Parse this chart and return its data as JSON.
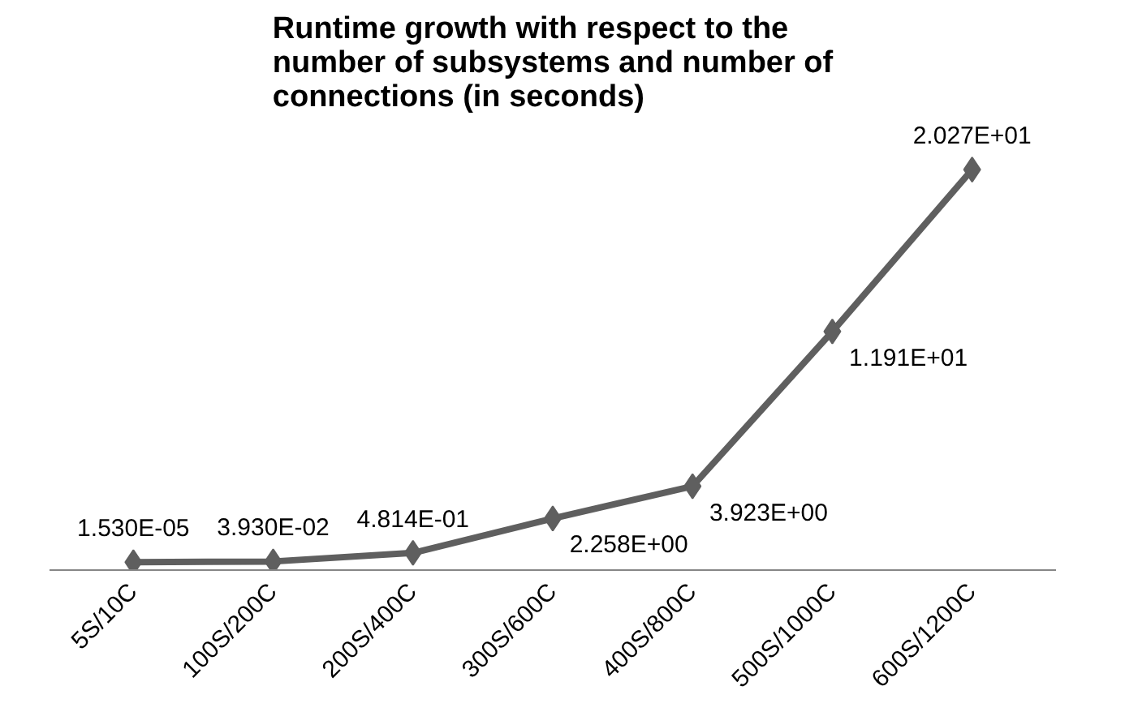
{
  "chart_data": {
    "type": "line",
    "title": "Runtime growth with respect to the number of subsystems and number of connections (in seconds)",
    "categories": [
      "5S/10C",
      "100S/200C",
      "200S/400C",
      "300S/600C",
      "400S/800C",
      "500S/1000C",
      "600S/1200C"
    ],
    "series": [
      {
        "color": "#5f5f5f",
        "values": [
          1.53e-05,
          0.0393,
          0.4814,
          2.258,
          3.923,
          11.91,
          20.27
        ],
        "value_labels": [
          "1.530E-05",
          "3.930E-02",
          "4.814E-01",
          "2.258E+00",
          "3.923E+00",
          "1.191E+01",
          "2.027E+01"
        ]
      }
    ],
    "marker": "diamond",
    "line_style": "solid",
    "grid": false,
    "tick_labels": "x"
  }
}
